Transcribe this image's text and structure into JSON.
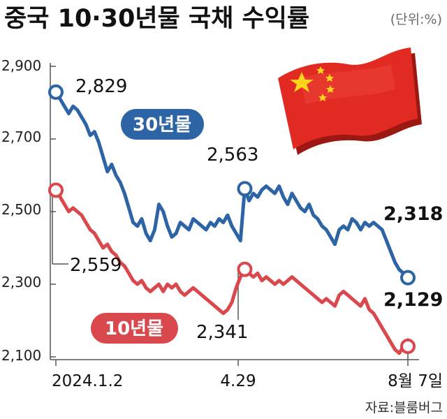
{
  "title": "중국 10·30년물 국채 수익률",
  "unit": "(단위:%)",
  "source": "자료:블룸버그",
  "colors": {
    "series_30y": "#2c64a6",
    "series_10y": "#d9484d",
    "flag_red": "#e02a22",
    "flag_star": "#ffd21c"
  },
  "chart_data": {
    "type": "line",
    "title": "중국 10·30년물 국채 수익률",
    "ylabel": "(단위:%)",
    "xlabel": "",
    "ylim": [
      2.1,
      2.9
    ],
    "yticks": [
      "2,900",
      "2,700",
      "2,500",
      "2,300",
      "2,100"
    ],
    "yticks_values": [
      2.9,
      2.7,
      2.5,
      2.3,
      2.1
    ],
    "xticks": [
      "2024.1.2",
      "4.29",
      "8월 7일"
    ],
    "grid": false,
    "legend": "inline",
    "series": [
      {
        "name": "30년물",
        "values": [
          2.829,
          2.81,
          2.79,
          2.77,
          2.79,
          2.78,
          2.76,
          2.74,
          2.71,
          2.72,
          2.69,
          2.65,
          2.61,
          2.63,
          2.6,
          2.58,
          2.55,
          2.51,
          2.47,
          2.46,
          2.48,
          2.44,
          2.42,
          2.45,
          2.52,
          2.5,
          2.46,
          2.43,
          2.44,
          2.47,
          2.46,
          2.45,
          2.48,
          2.47,
          2.46,
          2.45,
          2.47,
          2.46,
          2.48,
          2.47,
          2.49,
          2.46,
          2.44,
          2.42,
          2.563,
          2.53,
          2.55,
          2.54,
          2.56,
          2.57,
          2.56,
          2.55,
          2.57,
          2.54,
          2.52,
          2.55,
          2.53,
          2.51,
          2.5,
          2.52,
          2.49,
          2.48,
          2.46,
          2.45,
          2.43,
          2.41,
          2.45,
          2.46,
          2.45,
          2.48,
          2.47,
          2.45,
          2.47,
          2.46,
          2.47,
          2.46,
          2.45,
          2.42,
          2.39,
          2.36,
          2.34,
          2.33,
          2.318
        ],
        "labels": {
          "start": "2,829",
          "mid": "2,563",
          "end": "2,318"
        }
      },
      {
        "name": "10년물",
        "values": [
          2.559,
          2.54,
          2.52,
          2.5,
          2.51,
          2.5,
          2.49,
          2.47,
          2.45,
          2.44,
          2.42,
          2.4,
          2.41,
          2.39,
          2.38,
          2.36,
          2.35,
          2.33,
          2.31,
          2.3,
          2.31,
          2.29,
          2.28,
          2.29,
          2.3,
          2.28,
          2.3,
          2.29,
          2.3,
          2.28,
          2.27,
          2.28,
          2.29,
          2.28,
          2.27,
          2.26,
          2.25,
          2.24,
          2.23,
          2.22,
          2.23,
          2.25,
          2.29,
          2.32,
          2.341,
          2.33,
          2.32,
          2.33,
          2.31,
          2.32,
          2.31,
          2.3,
          2.31,
          2.3,
          2.31,
          2.32,
          2.31,
          2.3,
          2.29,
          2.28,
          2.27,
          2.26,
          2.25,
          2.26,
          2.25,
          2.24,
          2.27,
          2.28,
          2.27,
          2.26,
          2.25,
          2.24,
          2.26,
          2.23,
          2.22,
          2.2,
          2.18,
          2.16,
          2.14,
          2.12,
          2.11,
          2.13,
          2.129
        ],
        "labels": {
          "start": "2,559",
          "mid": "2,341",
          "end": "2,129"
        }
      }
    ]
  }
}
